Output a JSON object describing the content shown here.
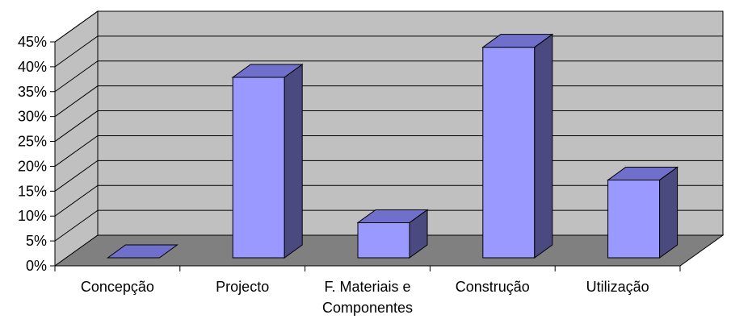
{
  "chart_data": {
    "type": "bar",
    "title": "",
    "xlabel": "",
    "ylabel": "",
    "ylim": [
      0,
      45
    ],
    "y_ticks": [
      "0%",
      "5%",
      "10%",
      "15%",
      "20%",
      "25%",
      "30%",
      "35%",
      "40%",
      "45%"
    ],
    "categories": [
      [
        "Concepção"
      ],
      [
        "Projecto"
      ],
      [
        "F. Materiais e",
        "Componentes"
      ],
      [
        "Construção"
      ],
      [
        "Utilização"
      ]
    ],
    "values": [
      0,
      36,
      7,
      42,
      15.5
    ],
    "grid": true,
    "legend": "none",
    "style": "3d-column",
    "colors": {
      "bar_front": "#9999ff",
      "bar_top": "#7070cc",
      "bar_side": "#4a4a80",
      "wall": "#c0c0c0",
      "floor": "#808080",
      "gridline": "#000000"
    }
  }
}
